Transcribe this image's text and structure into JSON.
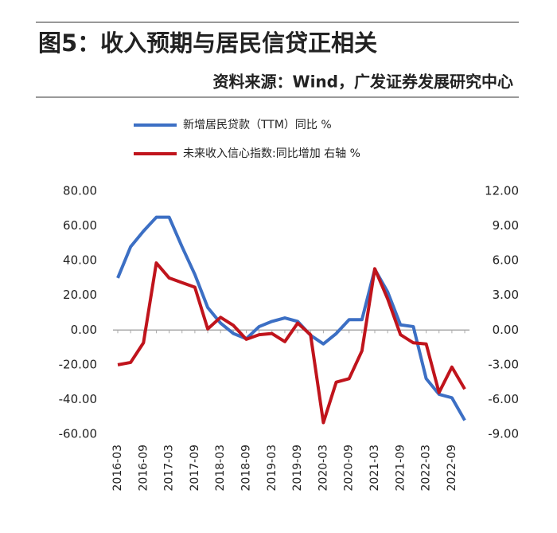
{
  "chart_data": {
    "type": "line",
    "title": "图5：收入预期与居民信贷正相关",
    "subtitle": "资料来源：Wind，广发证券发展研究中心",
    "categories": [
      "2016-03",
      null,
      "2016-09",
      null,
      "2017-03",
      null,
      "2017-09",
      null,
      "2018-03",
      null,
      "2018-09",
      null,
      "2019-03",
      null,
      "2019-09",
      null,
      "2020-03",
      null,
      "2020-09",
      null,
      "2021-03",
      null,
      "2021-09",
      null,
      "2022-03",
      null,
      "2022-09",
      null
    ],
    "series": [
      {
        "name": "新增居民贷款（TTM）同比 %",
        "color": "#3c6fc4",
        "values": [
          30,
          48,
          57,
          65,
          65,
          48,
          32,
          13,
          4,
          -2,
          -5,
          2,
          5,
          7,
          5,
          -3,
          -8,
          -2,
          6,
          6,
          35,
          22,
          3,
          2,
          -28,
          -37,
          -39,
          -52
        ]
      },
      {
        "name": "未来收入信心指数:同比增加  右轴 %",
        "color": "#c0141c",
        "axis": "y2",
        "values": [
          -3,
          -2.8,
          -1.1,
          5.8,
          4.5,
          4.1,
          3.7,
          0.1,
          1.1,
          0.4,
          -0.8,
          -0.4,
          -0.3,
          -1.0,
          0.6,
          -0.4,
          -8.0,
          -4.5,
          -4.2,
          -1.8,
          5.3,
          2.7,
          -0.4,
          -1.1,
          -1.2,
          -5.4,
          -3.2,
          -5.1
        ]
      }
    ],
    "ylim": [
      -60,
      80
    ],
    "yticks": [
      {
        "value": -60,
        "label": "-60.00"
      },
      {
        "value": -40,
        "label": "-40.00"
      },
      {
        "value": -20,
        "label": "-20.00"
      },
      {
        "value": 0,
        "label": "0.00"
      },
      {
        "value": 20,
        "label": "20.00"
      },
      {
        "value": 40,
        "label": "40.00"
      },
      {
        "value": 60,
        "label": "60.00"
      },
      {
        "value": 80,
        "label": "80.00"
      }
    ],
    "y2lim": [
      -9,
      12
    ],
    "y2ticks": [
      {
        "value": -9,
        "label": "-9.00"
      },
      {
        "value": -6,
        "label": "-6.00"
      },
      {
        "value": -3,
        "label": "-3.00"
      },
      {
        "value": 0,
        "label": "0.00"
      },
      {
        "value": 3,
        "label": "3.00"
      },
      {
        "value": 6,
        "label": "6.00"
      },
      {
        "value": 9,
        "label": "9.00"
      },
      {
        "value": 12,
        "label": "12.00"
      }
    ]
  }
}
